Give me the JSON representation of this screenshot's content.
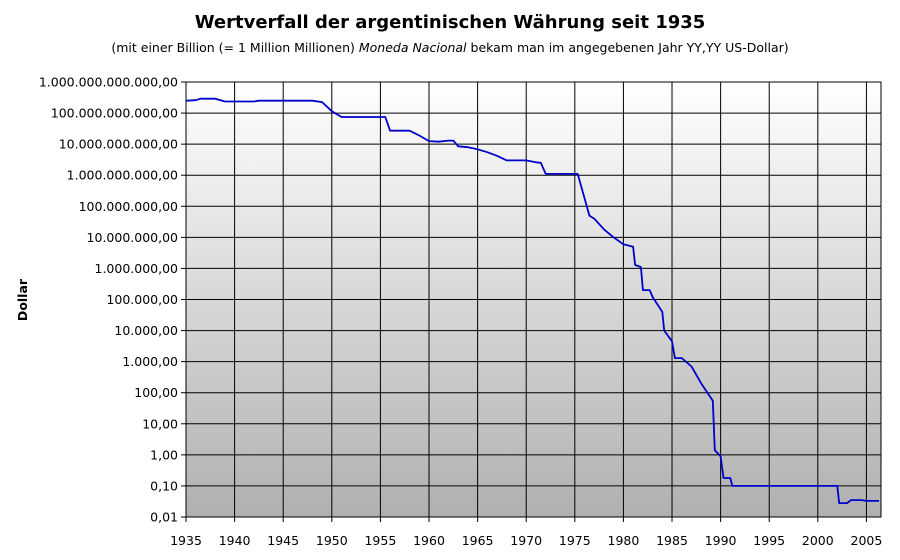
{
  "chart_data": {
    "type": "line",
    "title": "Wertverfall der argentinischen Währung seit 1935",
    "subtitle": {
      "before": "(mit einer Billion (= 1 Million Millionen) ",
      "emph": "Moneda Nacional",
      "after": " bekam man im angegebenen Jahr YY,YY US-Dollar)"
    },
    "ylabel": "Dollar",
    "xlabel": "",
    "y_scale": "log",
    "ylim": [
      0.01,
      1000000000000
    ],
    "xlim": [
      1935,
      2006.5
    ],
    "grid": true,
    "legend": "none",
    "line_color": "#0000cc",
    "y_ticks": [
      {
        "value": 1000000000000,
        "label": "1.000.000.000.000,00"
      },
      {
        "value": 100000000000,
        "label": "100.000.000.000,00"
      },
      {
        "value": 10000000000,
        "label": "10.000.000.000,00"
      },
      {
        "value": 1000000000,
        "label": "1.000.000.000,00"
      },
      {
        "value": 100000000,
        "label": "100.000.000,00"
      },
      {
        "value": 10000000,
        "label": "10.000.000,00"
      },
      {
        "value": 1000000,
        "label": "1.000.000,00"
      },
      {
        "value": 100000,
        "label": "100.000,00"
      },
      {
        "value": 10000,
        "label": "10.000,00"
      },
      {
        "value": 1000,
        "label": "1.000,00"
      },
      {
        "value": 100,
        "label": "100,00"
      },
      {
        "value": 10,
        "label": "10,00"
      },
      {
        "value": 1,
        "label": "1,00"
      },
      {
        "value": 0.1,
        "label": "0,10"
      },
      {
        "value": 0.01,
        "label": "0,01"
      }
    ],
    "x_ticks": [
      {
        "value": 1935,
        "label": "1935"
      },
      {
        "value": 1940,
        "label": "1940"
      },
      {
        "value": 1945,
        "label": "1945"
      },
      {
        "value": 1950,
        "label": "1950"
      },
      {
        "value": 1955,
        "label": "1955"
      },
      {
        "value": 1960,
        "label": "1960"
      },
      {
        "value": 1965,
        "label": "1965"
      },
      {
        "value": 1970,
        "label": "1970"
      },
      {
        "value": 1975,
        "label": "1975"
      },
      {
        "value": 1980,
        "label": "1980"
      },
      {
        "value": 1985,
        "label": "1985"
      },
      {
        "value": 1990,
        "label": "1990"
      },
      {
        "value": 1995,
        "label": "1995"
      },
      {
        "value": 2000,
        "label": "2000"
      },
      {
        "value": 2005,
        "label": "2005"
      }
    ],
    "series": [
      {
        "points": [
          [
            1935.0,
            250000000000
          ],
          [
            1936.0,
            260000000000
          ],
          [
            1936.5,
            290000000000
          ],
          [
            1938.0,
            290000000000
          ],
          [
            1939.0,
            235000000000
          ],
          [
            1942.0,
            235000000000
          ],
          [
            1942.5,
            250000000000
          ],
          [
            1948.0,
            250000000000
          ],
          [
            1949.0,
            225000000000
          ],
          [
            1950.0,
            115000000000
          ],
          [
            1951.0,
            75000000000
          ],
          [
            1954.5,
            75000000000
          ],
          [
            1955.5,
            75000000000
          ],
          [
            1956.0,
            27000000000
          ],
          [
            1957.5,
            27000000000
          ],
          [
            1958.0,
            27000000000
          ],
          [
            1959.0,
            19000000000
          ],
          [
            1960.0,
            12500000000
          ],
          [
            1961.0,
            12000000000
          ],
          [
            1962.0,
            13000000000
          ],
          [
            1962.5,
            13000000000
          ],
          [
            1963.0,
            8500000000
          ],
          [
            1964.0,
            8000000000
          ],
          [
            1965.0,
            6800000000
          ],
          [
            1966.0,
            5500000000
          ],
          [
            1967.0,
            4200000000
          ],
          [
            1968.0,
            3000000000
          ],
          [
            1970.0,
            3000000000
          ],
          [
            1971.0,
            2600000000
          ],
          [
            1971.5,
            2500000000
          ],
          [
            1972.0,
            1100000000
          ],
          [
            1975.0,
            1100000000
          ],
          [
            1975.3,
            1100000000
          ],
          [
            1976.5,
            50000000
          ],
          [
            1977.0,
            40000000
          ],
          [
            1978.0,
            18000000
          ],
          [
            1979.0,
            10000000
          ],
          [
            1980.0,
            6000000
          ],
          [
            1981.0,
            5000000
          ],
          [
            1981.2,
            1300000
          ],
          [
            1981.8,
            1100000
          ],
          [
            1982.0,
            200000
          ],
          [
            1982.7,
            200000
          ],
          [
            1983.0,
            120000
          ],
          [
            1984.0,
            40000
          ],
          [
            1984.2,
            10000
          ],
          [
            1985.0,
            4500
          ],
          [
            1985.3,
            1300
          ],
          [
            1986.0,
            1300
          ],
          [
            1987.0,
            700
          ],
          [
            1988.0,
            200
          ],
          [
            1989.2,
            55
          ],
          [
            1989.4,
            1.4
          ],
          [
            1990.0,
            0.9
          ],
          [
            1990.3,
            0.18
          ],
          [
            1991.0,
            0.18
          ],
          [
            1991.2,
            0.1
          ],
          [
            2002.0,
            0.1
          ],
          [
            2002.2,
            0.028
          ],
          [
            2003.0,
            0.028
          ],
          [
            2003.4,
            0.035
          ],
          [
            2004.5,
            0.035
          ],
          [
            2005.0,
            0.033
          ],
          [
            2006.3,
            0.033
          ]
        ]
      }
    ]
  }
}
